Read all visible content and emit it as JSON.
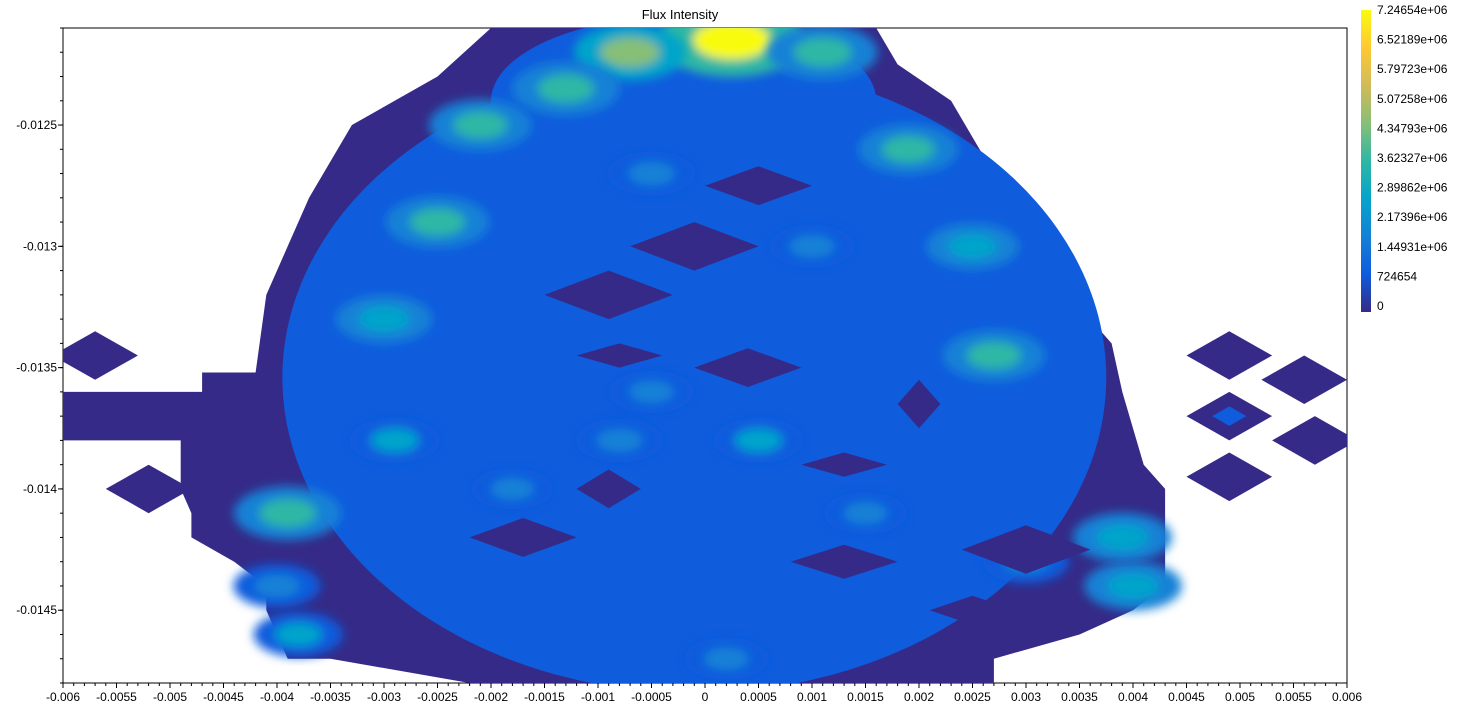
{
  "chart_data": {
    "type": "heatmap",
    "title": "Flux Intensity",
    "xlabel": "",
    "ylabel": "",
    "xlim": [
      -0.006,
      0.006
    ],
    "ylim": [
      -0.0148,
      -0.0121
    ],
    "x_ticks": [
      -0.006,
      -0.0055,
      -0.005,
      -0.0045,
      -0.004,
      -0.0035,
      -0.003,
      -0.0025,
      -0.002,
      -0.0015,
      -0.001,
      -0.0005,
      0,
      0.0005,
      0.001,
      0.0015,
      0.002,
      0.0025,
      0.003,
      0.0035,
      0.004,
      0.0045,
      0.005,
      0.0055,
      0.006
    ],
    "x_tick_labels": [
      "-0.006",
      "-0.0055",
      "-0.005",
      "-0.0045",
      "-0.004",
      "-0.0035",
      "-0.003",
      "-0.0025",
      "-0.002",
      "-0.0015",
      "-0.001",
      "-0.0005",
      "0",
      "0.0005",
      "0.001",
      "0.0015",
      "0.002",
      "0.0025",
      "0.003",
      "0.0035",
      "0.004",
      "0.0045",
      "0.005",
      "0.0055",
      "0.006"
    ],
    "y_ticks": [
      -0.0125,
      -0.013,
      -0.0135,
      -0.014,
      -0.0145
    ],
    "y_tick_labels": [
      "-0.0125",
      "-0.013",
      "-0.0135",
      "-0.014",
      "-0.0145"
    ],
    "colorbar": {
      "min": 0,
      "max": 7246540,
      "tick_labels": [
        "7.24654e+06",
        "6.52189e+06",
        "5.79723e+06",
        "5.07258e+06",
        "4.34793e+06",
        "3.62327e+06",
        "2.89862e+06",
        "2.17396e+06",
        "1.44931e+06",
        "724654",
        "0"
      ],
      "colors": [
        "#352a87",
        "#0f5cdd",
        "#1481d6",
        "#06a4ca",
        "#2eb7a4",
        "#87bf77",
        "#d1bb59",
        "#fec832",
        "#f9fb0e"
      ]
    },
    "region_outline": [
      [
        -0.002,
        -0.0121
      ],
      [
        0.0016,
        -0.0121
      ],
      [
        0.0018,
        -0.01225
      ],
      [
        0.0023,
        -0.0124
      ],
      [
        0.0025,
        -0.01255
      ],
      [
        0.0027,
        -0.0127
      ],
      [
        0.0031,
        -0.01285
      ],
      [
        0.0033,
        -0.013
      ],
      [
        0.0035,
        -0.0131
      ],
      [
        0.0036,
        -0.0133
      ],
      [
        0.0038,
        -0.0134
      ],
      [
        0.0039,
        -0.0136
      ],
      [
        0.0041,
        -0.0139
      ],
      [
        0.0043,
        -0.014
      ],
      [
        0.0043,
        -0.0144
      ],
      [
        0.004,
        -0.0145
      ],
      [
        0.0035,
        -0.0146
      ],
      [
        0.0027,
        -0.0147
      ],
      [
        0.0027,
        -0.0149
      ],
      [
        -0.0011,
        -0.0149
      ],
      [
        -0.0022,
        -0.0148
      ],
      [
        -0.0035,
        -0.0147
      ],
      [
        -0.0039,
        -0.0147
      ],
      [
        -0.0041,
        -0.0145
      ],
      [
        -0.0041,
        -0.0144
      ],
      [
        -0.0044,
        -0.0143
      ],
      [
        -0.0048,
        -0.0142
      ],
      [
        -0.0048,
        -0.0141
      ],
      [
        -0.0049,
        -0.014
      ],
      [
        -0.0049,
        -0.0138
      ],
      [
        -0.006,
        -0.0138
      ],
      [
        -0.006,
        -0.0136
      ],
      [
        -0.0054,
        -0.0136
      ],
      [
        -0.005,
        -0.0136
      ],
      [
        -0.0047,
        -0.0136
      ],
      [
        -0.0047,
        -0.01352
      ],
      [
        -0.0042,
        -0.01352
      ],
      [
        -0.0041,
        -0.0132
      ],
      [
        -0.0039,
        -0.013
      ],
      [
        -0.0037,
        -0.0128
      ],
      [
        -0.0035,
        -0.01265
      ],
      [
        -0.0033,
        -0.0125
      ],
      [
        -0.0029,
        -0.0124
      ],
      [
        -0.0025,
        -0.0123
      ]
    ],
    "hotspots": [
      {
        "x": 0.00025,
        "y": -0.01215,
        "value": 7000000
      },
      {
        "x": -0.0007,
        "y": -0.0122,
        "value": 4200000
      },
      {
        "x": 0.0011,
        "y": -0.0122,
        "value": 4000000
      },
      {
        "x": -0.0013,
        "y": -0.01235,
        "value": 3800000
      },
      {
        "x": -0.0021,
        "y": -0.0125,
        "value": 3400000
      },
      {
        "x": 0.0019,
        "y": -0.0126,
        "value": 3200000
      },
      {
        "x": -0.0025,
        "y": -0.0129,
        "value": 3500000
      },
      {
        "x": 0.0027,
        "y": -0.01345,
        "value": 3400000
      },
      {
        "x": -0.0039,
        "y": -0.0141,
        "value": 3800000
      },
      {
        "x": 0.0039,
        "y": -0.0142,
        "value": 3100000
      },
      {
        "x": 0.004,
        "y": -0.0144,
        "value": 3000000
      },
      {
        "x": -0.003,
        "y": -0.0133,
        "value": 2900000
      },
      {
        "x": 0.0025,
        "y": -0.013,
        "value": 2600000
      },
      {
        "x": 0.0005,
        "y": -0.0138,
        "value": 2300000
      },
      {
        "x": -0.0005,
        "y": -0.0136,
        "value": 1900000
      },
      {
        "x": -0.0029,
        "y": -0.0138,
        "value": 2400000
      },
      {
        "x": -0.0008,
        "y": -0.0138,
        "value": 2100000
      },
      {
        "x": 0.001,
        "y": -0.013,
        "value": 2000000
      },
      {
        "x": 0.003,
        "y": -0.0143,
        "value": 2000000
      },
      {
        "x": -0.0005,
        "y": -0.0127,
        "value": 2200000
      },
      {
        "x": -0.0018,
        "y": -0.014,
        "value": 1700000
      },
      {
        "x": 0.0015,
        "y": -0.0141,
        "value": 1800000
      },
      {
        "x": -0.004,
        "y": -0.0144,
        "value": 2100000
      },
      {
        "x": -0.0038,
        "y": -0.0146,
        "value": 2300000
      },
      {
        "x": 0.0002,
        "y": -0.0147,
        "value": 1900000
      }
    ],
    "low_patches": [
      {
        "x": -0.0001,
        "y": -0.013,
        "rx": 0.0006,
        "ry": 0.0001
      },
      {
        "x": 0.0005,
        "y": -0.01275,
        "rx": 0.0005,
        "ry": 8e-05
      },
      {
        "x": -0.0009,
        "y": -0.0132,
        "rx": 0.0006,
        "ry": 0.0001
      },
      {
        "x": 0.0013,
        "y": -0.0143,
        "rx": 0.0005,
        "ry": 7e-05
      },
      {
        "x": 0.003,
        "y": -0.01425,
        "rx": 0.0006,
        "ry": 0.0001
      },
      {
        "x": -0.0017,
        "y": -0.0142,
        "rx": 0.0005,
        "ry": 8e-05
      },
      {
        "x": 0.0004,
        "y": -0.0135,
        "rx": 0.0005,
        "ry": 8e-05
      },
      {
        "x": -0.0009,
        "y": -0.014,
        "rx": 0.0003,
        "ry": 8e-05
      },
      {
        "x": 0.0025,
        "y": -0.0145,
        "rx": 0.0004,
        "ry": 6e-05
      },
      {
        "x": -0.0008,
        "y": -0.01345,
        "rx": 0.0004,
        "ry": 5e-05
      },
      {
        "x": 0.002,
        "y": -0.01365,
        "rx": 0.0002,
        "ry": 0.0001
      },
      {
        "x": 0.0013,
        "y": -0.0139,
        "rx": 0.0004,
        "ry": 5e-05
      }
    ],
    "side_diamonds": [
      {
        "x": -0.0057,
        "y": -0.01345,
        "rx": 0.0004,
        "ry": 0.0001,
        "value": 300000
      },
      {
        "x": -0.0052,
        "y": -0.014,
        "rx": 0.0004,
        "ry": 0.0001,
        "value": 300000
      },
      {
        "x": 0.0049,
        "y": -0.01345,
        "rx": 0.0004,
        "ry": 0.0001,
        "value": 300000
      },
      {
        "x": 0.0049,
        "y": -0.0137,
        "rx": 0.0004,
        "ry": 0.0001,
        "value": 500000
      },
      {
        "x": 0.0049,
        "y": -0.01395,
        "rx": 0.0004,
        "ry": 0.0001,
        "value": 300000
      },
      {
        "x": 0.0056,
        "y": -0.01355,
        "rx": 0.0004,
        "ry": 0.0001,
        "value": 300000
      },
      {
        "x": 0.0057,
        "y": -0.0138,
        "rx": 0.0004,
        "ry": 0.0001,
        "value": 300000
      }
    ]
  }
}
